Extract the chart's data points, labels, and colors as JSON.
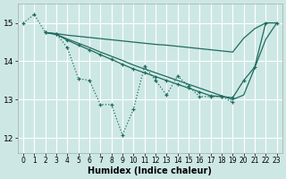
{
  "xlabel": "Humidex (Indice chaleur)",
  "bg_color": "#cde8e4",
  "grid_color": "#ffffff",
  "line_color": "#1e6b5e",
  "xlim": [
    -0.5,
    23.5
  ],
  "ylim": [
    11.6,
    15.5
  ],
  "yticks": [
    12,
    13,
    14,
    15
  ],
  "xticks": [
    0,
    1,
    2,
    3,
    4,
    5,
    6,
    7,
    8,
    9,
    10,
    11,
    12,
    13,
    14,
    15,
    16,
    17,
    18,
    19,
    20,
    21,
    22,
    23
  ],
  "s1_x": [
    0,
    1,
    2,
    3,
    4,
    5,
    6,
    7,
    8,
    9,
    10,
    11,
    12,
    13,
    14,
    15,
    16,
    17,
    18,
    19
  ],
  "s1_y": [
    15.0,
    15.22,
    14.75,
    14.72,
    14.35,
    13.55,
    13.5,
    12.87,
    12.87,
    12.08,
    12.75,
    13.87,
    13.5,
    13.12,
    13.62,
    13.35,
    13.08,
    13.08,
    13.08,
    12.93
  ],
  "s2_x": [
    2,
    3,
    4,
    5,
    6,
    7,
    8,
    9,
    10,
    11,
    12,
    13,
    14,
    15,
    16,
    17,
    18,
    19,
    20,
    21,
    22,
    23
  ],
  "s2_y": [
    14.75,
    14.72,
    14.68,
    14.65,
    14.62,
    14.59,
    14.56,
    14.53,
    14.5,
    14.47,
    14.44,
    14.42,
    14.39,
    14.36,
    14.33,
    14.3,
    14.27,
    14.24,
    14.6,
    14.85,
    15.0,
    15.0
  ],
  "s3_x": [
    2,
    3,
    4,
    5,
    6,
    7,
    8,
    9,
    10,
    11,
    12,
    13,
    14,
    15,
    16,
    17,
    18,
    19,
    20,
    21,
    22,
    23
  ],
  "s3_y": [
    14.75,
    14.7,
    14.55,
    14.42,
    14.3,
    14.17,
    14.05,
    13.92,
    13.8,
    13.7,
    13.6,
    13.5,
    13.4,
    13.3,
    13.2,
    13.1,
    13.08,
    13.05,
    13.5,
    13.85,
    15.0,
    15.0
  ],
  "s4_x": [
    2,
    3,
    4,
    5,
    6,
    7,
    8,
    9,
    10,
    11,
    12,
    13,
    14,
    15,
    16,
    17,
    18,
    19,
    20,
    21,
    22,
    23
  ],
  "s4_y": [
    14.75,
    14.7,
    14.58,
    14.47,
    14.36,
    14.24,
    14.13,
    14.02,
    13.9,
    13.8,
    13.7,
    13.6,
    13.5,
    13.4,
    13.3,
    13.2,
    13.1,
    13.0,
    13.12,
    13.83,
    14.57,
    15.0
  ]
}
